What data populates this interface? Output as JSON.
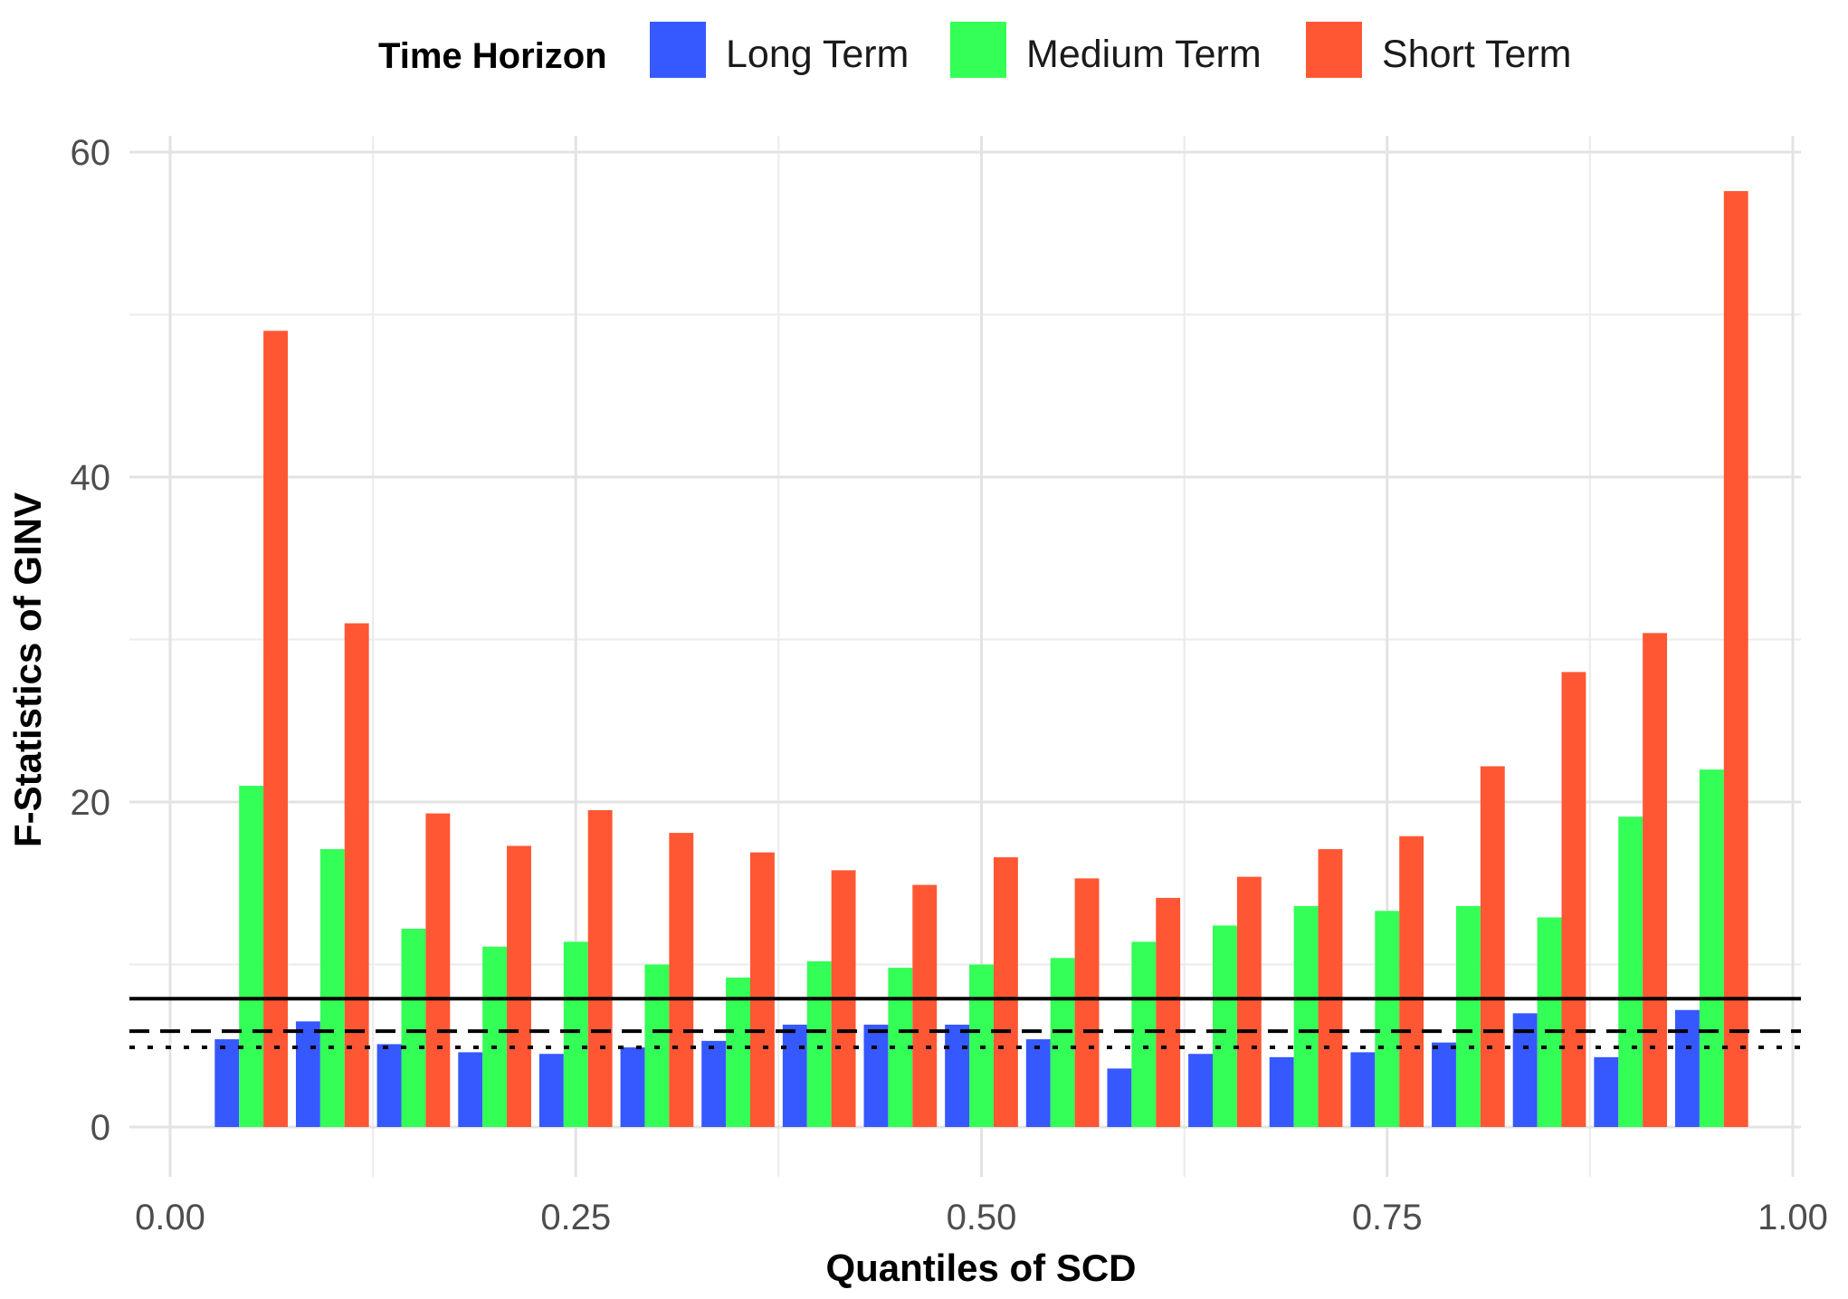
{
  "chart_data": {
    "type": "bar",
    "title": "",
    "xlabel": "Quantiles of SCD",
    "ylabel": "F-Statistics of GINV",
    "xlim": [
      0.0,
      1.0
    ],
    "ylim": [
      0,
      60
    ],
    "x_ticks": [
      "0.00",
      "0.25",
      "0.50",
      "0.75",
      "1.00"
    ],
    "y_ticks": [
      "0",
      "20",
      "40",
      "60"
    ],
    "grid": true,
    "legend": {
      "title": "Time Horizon",
      "position": "top"
    },
    "categories": [
      0.05,
      0.1,
      0.15,
      0.2,
      0.25,
      0.3,
      0.35,
      0.4,
      0.45,
      0.5,
      0.55,
      0.6,
      0.65,
      0.7,
      0.75,
      0.8,
      0.85,
      0.9,
      0.95
    ],
    "series": [
      {
        "name": "Long Term",
        "color": "#3658ff",
        "values": [
          5.4,
          6.5,
          5.1,
          4.6,
          4.5,
          4.9,
          5.3,
          6.3,
          6.3,
          6.3,
          5.4,
          3.6,
          4.5,
          4.3,
          4.6,
          5.2,
          7.0,
          4.3,
          7.2
        ]
      },
      {
        "name": "Medium Term",
        "color": "#33ff57",
        "values": [
          21.0,
          17.1,
          12.2,
          11.1,
          11.4,
          10.0,
          9.2,
          10.2,
          9.8,
          10.0,
          10.4,
          11.4,
          12.4,
          13.6,
          13.3,
          13.6,
          12.9,
          19.1,
          22.0
        ]
      },
      {
        "name": "Short Term",
        "color": "#ff5733",
        "values": [
          49.0,
          31.0,
          19.3,
          17.3,
          19.5,
          18.1,
          16.9,
          15.8,
          14.9,
          16.6,
          15.3,
          14.1,
          15.4,
          17.1,
          17.9,
          22.2,
          28.0,
          30.4,
          57.6
        ]
      }
    ],
    "reference_lines": [
      {
        "style": "solid",
        "value": 7.9
      },
      {
        "style": "dashed",
        "value": 5.9
      },
      {
        "style": "dotted",
        "value": 4.9
      }
    ]
  }
}
